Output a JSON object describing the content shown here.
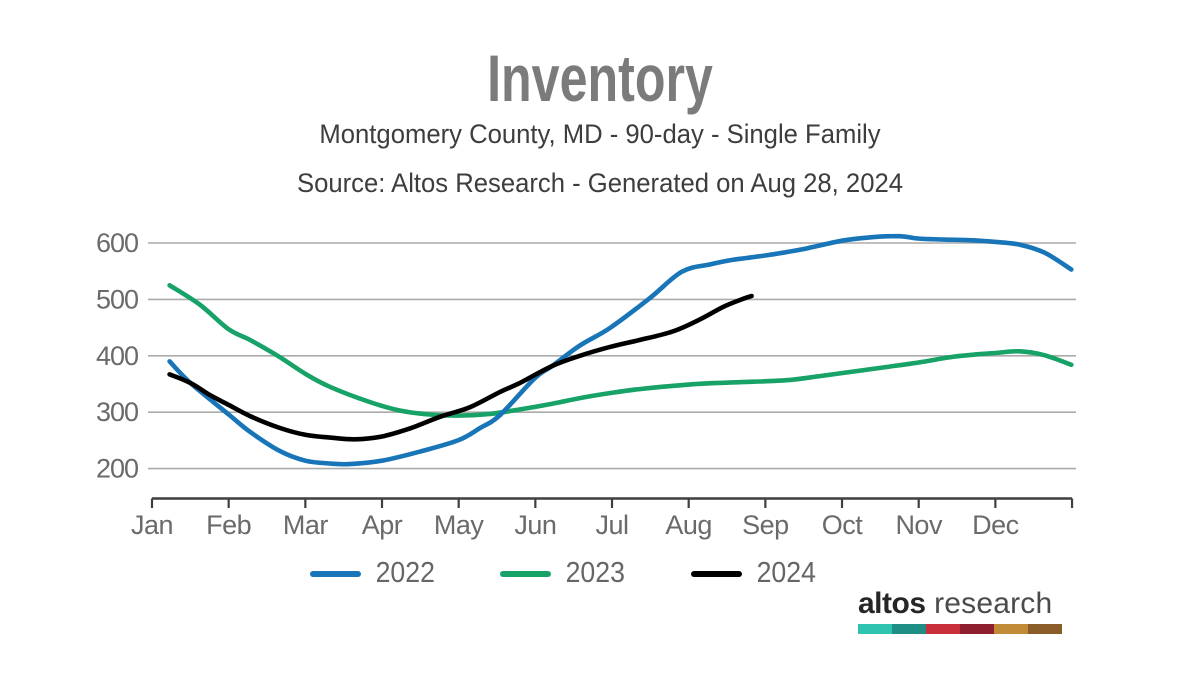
{
  "header": {
    "title": "Inventory",
    "subtitle": "Montgomery County, MD - 90-day - Single Family",
    "source_note": "Source: Altos Research - Generated on Aug 28, 2024"
  },
  "chart_data": {
    "type": "line",
    "title": "Inventory",
    "subtitle": "Montgomery County, MD - 90-day - Single Family",
    "source_note": "Source: Altos Research - Generated on Aug 28, 2024",
    "categories": [
      "Jan",
      "Feb",
      "Mar",
      "Apr",
      "May",
      "Jun",
      "Jul",
      "Aug",
      "Sep",
      "Oct",
      "Nov",
      "Dec"
    ],
    "xlabel": "",
    "ylabel": "",
    "y_ticks": [
      200,
      300,
      400,
      500,
      600
    ],
    "ylim": [
      145,
      632
    ],
    "xlim_months": [
      0,
      12
    ],
    "grid": true,
    "legend_position": "bottom",
    "series": [
      {
        "name": "2022",
        "color": "#1875b8",
        "points": [
          [
            0.23,
            390
          ],
          [
            0.5,
            352
          ],
          [
            1.0,
            296
          ],
          [
            1.28,
            265
          ],
          [
            1.67,
            231
          ],
          [
            2.0,
            214
          ],
          [
            2.32,
            209
          ],
          [
            2.58,
            208
          ],
          [
            3.0,
            214
          ],
          [
            3.49,
            230
          ],
          [
            3.99,
            250
          ],
          [
            4.28,
            272
          ],
          [
            4.54,
            295
          ],
          [
            4.99,
            360
          ],
          [
            5.22,
            382
          ],
          [
            5.58,
            418
          ],
          [
            5.98,
            450
          ],
          [
            6.49,
            502
          ],
          [
            6.91,
            549
          ],
          [
            7.28,
            562
          ],
          [
            7.57,
            570
          ],
          [
            8.01,
            578
          ],
          [
            8.45,
            588
          ],
          [
            9.0,
            604
          ],
          [
            9.36,
            610
          ],
          [
            9.75,
            612
          ],
          [
            9.99,
            608
          ],
          [
            10.34,
            606
          ],
          [
            10.66,
            605
          ],
          [
            11.0,
            602
          ],
          [
            11.32,
            597
          ],
          [
            11.64,
            583
          ],
          [
            11.99,
            553
          ]
        ]
      },
      {
        "name": "2023",
        "color": "#17a268",
        "points": [
          [
            0.23,
            525
          ],
          [
            0.63,
            490
          ],
          [
            1.0,
            447
          ],
          [
            1.28,
            428
          ],
          [
            1.64,
            400
          ],
          [
            2.0,
            368
          ],
          [
            2.32,
            345
          ],
          [
            2.84,
            318
          ],
          [
            3.23,
            303
          ],
          [
            3.62,
            296
          ],
          [
            3.99,
            294
          ],
          [
            4.41,
            297
          ],
          [
            4.8,
            305
          ],
          [
            5.22,
            315
          ],
          [
            5.58,
            325
          ],
          [
            5.98,
            334
          ],
          [
            6.36,
            341
          ],
          [
            7.0,
            349
          ],
          [
            7.4,
            352
          ],
          [
            7.84,
            354
          ],
          [
            8.3,
            357
          ],
          [
            8.71,
            364
          ],
          [
            9.14,
            372
          ],
          [
            9.57,
            380
          ],
          [
            9.99,
            388
          ],
          [
            10.44,
            398
          ],
          [
            10.8,
            403
          ],
          [
            11.0,
            405
          ],
          [
            11.32,
            408
          ],
          [
            11.64,
            401
          ],
          [
            11.99,
            384
          ]
        ]
      },
      {
        "name": "2024",
        "color": "#000000",
        "points": [
          [
            0.23,
            367
          ],
          [
            0.5,
            352
          ],
          [
            0.76,
            330
          ],
          [
            1.0,
            313
          ],
          [
            1.28,
            293
          ],
          [
            1.67,
            272
          ],
          [
            2.0,
            260
          ],
          [
            2.32,
            255
          ],
          [
            2.65,
            252
          ],
          [
            3.0,
            257
          ],
          [
            3.36,
            271
          ],
          [
            3.76,
            292
          ],
          [
            4.15,
            309
          ],
          [
            4.54,
            336
          ],
          [
            4.8,
            352
          ],
          [
            5.22,
            382
          ],
          [
            5.58,
            400
          ],
          [
            5.98,
            416
          ],
          [
            6.36,
            428
          ],
          [
            6.79,
            443
          ],
          [
            7.14,
            464
          ],
          [
            7.44,
            486
          ],
          [
            7.67,
            499
          ],
          [
            7.82,
            506
          ]
        ]
      }
    ]
  },
  "logo": {
    "brand_bold": "altos",
    "brand_light": "research",
    "bar_colors": [
      "#2ec4b0",
      "#1f8e84",
      "#c92f3a",
      "#8c1e2d",
      "#c18a36",
      "#8a5c28"
    ]
  },
  "style": {
    "grid_color": "#ababab",
    "axis_color": "#3f3f3f",
    "tick_label_color": "#6a6a6a",
    "title_color": "#7b7b7b",
    "subtitle_color": "#3d3d3d",
    "legend_text_color": "#666666"
  }
}
